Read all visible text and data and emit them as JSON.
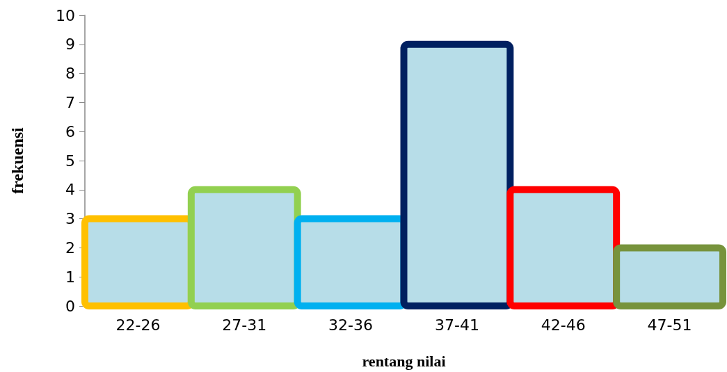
{
  "chart_data": {
    "type": "bar",
    "xlabel": "rentang nilai",
    "ylabel": "frekuensi",
    "categories": [
      "22-26",
      "27-31",
      "32-36",
      "37-41",
      "42-46",
      "47-51"
    ],
    "values": [
      3,
      4,
      3,
      9,
      4,
      2
    ],
    "color": "#b7dde8",
    "colors": [
      "#ffc000",
      "#92d050",
      "#00b0f0",
      "#002060",
      "#ff0000",
      "#77933c"
    ],
    "ylim": [
      0,
      10
    ],
    "yticks": [
      0,
      1,
      2,
      3,
      4,
      5,
      6,
      7,
      8,
      9,
      10
    ],
    "grid": false
  }
}
